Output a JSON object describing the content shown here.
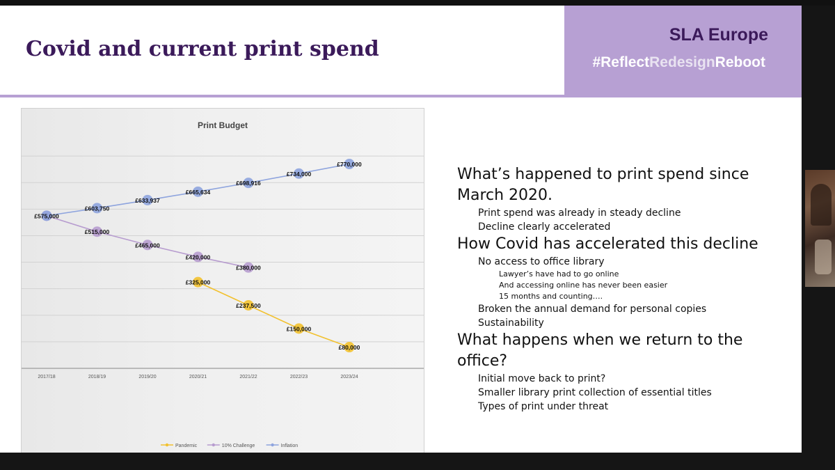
{
  "slide": {
    "title": "Covid and current print spend",
    "brand": "SLA Europe",
    "hashtag_parts": [
      "#Reflect",
      "Redesign",
      "Reboot"
    ]
  },
  "bullets": [
    {
      "level": 1,
      "text": "What’s happened to print spend since"
    },
    {
      "level": 1,
      "text": "March 2020."
    },
    {
      "level": 2,
      "text": "Print spend was already in steady decline"
    },
    {
      "level": 2,
      "text": "Decline clearly accelerated"
    },
    {
      "level": 1,
      "text": "How Covid has accelerated this decline"
    },
    {
      "level": 2,
      "text": "No access to office library"
    },
    {
      "level": 3,
      "text": "Lawyer’s have had to go online"
    },
    {
      "level": 3,
      "text": "And accessing online has never been easier"
    },
    {
      "level": 3,
      "text": "15 months and counting…."
    },
    {
      "level": 2,
      "text": "Broken the annual demand for personal copies"
    },
    {
      "level": 2,
      "text": "Sustainability"
    },
    {
      "level": 1,
      "text": "What happens when we return to the"
    },
    {
      "level": 1,
      "text": "office?"
    },
    {
      "level": 2,
      "text": "Initial move back to print?"
    },
    {
      "level": 2,
      "text": "Smaller library print collection of essential titles"
    },
    {
      "level": 2,
      "text": "Types of print under threat"
    }
  ],
  "chart_data": {
    "type": "line",
    "title": "Print Budget",
    "categories": [
      "2017/18",
      "2018/19",
      "2019/20",
      "2020/21",
      "2021/22",
      "2022/23",
      "2023/24"
    ],
    "ylim": [
      0,
      900000
    ],
    "grid": true,
    "legend_position": "bottom",
    "series": [
      {
        "name": "Pandemic",
        "color": "#f2c12e",
        "values": [
          null,
          null,
          null,
          325000,
          237500,
          150000,
          80000
        ],
        "labels": [
          null,
          null,
          null,
          "£325,000",
          "£237,500",
          "£150,000",
          "£80,000"
        ]
      },
      {
        "name": "10% Challenge",
        "color": "#b79ccf",
        "values": [
          575000,
          515000,
          465000,
          420000,
          380000,
          null,
          null
        ],
        "labels": [
          null,
          "£515,000",
          "£465,000",
          "£420,000",
          "£380,000",
          null,
          null
        ]
      },
      {
        "name": "Inflation",
        "color": "#8ea4de",
        "values": [
          575000,
          603750,
          633937,
          665634,
          698916,
          734000,
          770000
        ],
        "labels": [
          "£575,000",
          "£603,750",
          "£633,937",
          "£665,634",
          "£698,916",
          "£734,000",
          "£770,000"
        ]
      }
    ]
  }
}
